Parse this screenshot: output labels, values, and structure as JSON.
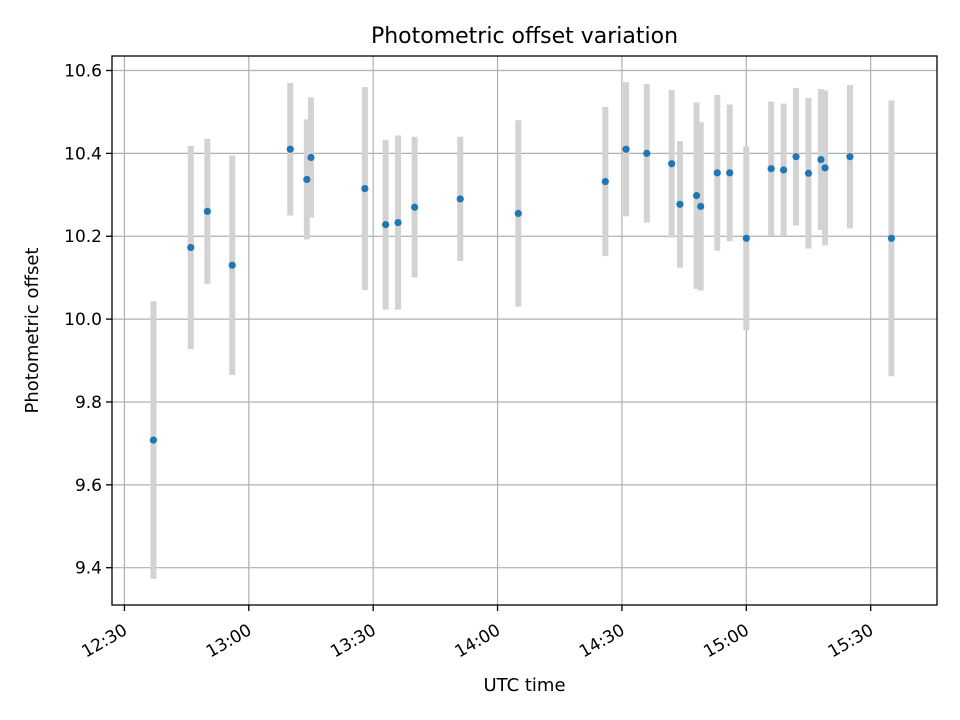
{
  "chart_data": {
    "type": "scatter",
    "title": "Photometric offset variation",
    "xlabel": "UTC time",
    "ylabel": "Photometric offset",
    "xlim": [
      "12:27",
      "15:46"
    ],
    "ylim": [
      9.31,
      10.635
    ],
    "x_ticks": [
      "12:30",
      "13:00",
      "13:30",
      "14:00",
      "14:30",
      "15:00",
      "15:30"
    ],
    "y_ticks": [
      9.4,
      9.6,
      9.8,
      10.0,
      10.2,
      10.4,
      10.6
    ],
    "grid": true,
    "marker_color": "#1f77b4",
    "errorbar_color": "#d3d3d3",
    "series": [
      {
        "points": [
          {
            "time": "12:37",
            "y": 9.708,
            "err": 0.335
          },
          {
            "time": "12:46",
            "y": 10.173,
            "err": 0.245
          },
          {
            "time": "12:50",
            "y": 10.26,
            "err": 0.175
          },
          {
            "time": "12:56",
            "y": 10.13,
            "err": 0.265
          },
          {
            "time": "13:10",
            "y": 10.41,
            "err": 0.16
          },
          {
            "time": "13:14",
            "y": 10.337,
            "err": 0.145
          },
          {
            "time": "13:15",
            "y": 10.39,
            "err": 0.145
          },
          {
            "time": "13:28",
            "y": 10.315,
            "err": 0.245
          },
          {
            "time": "13:33",
            "y": 10.228,
            "err": 0.205
          },
          {
            "time": "13:36",
            "y": 10.233,
            "err": 0.21
          },
          {
            "time": "13:40",
            "y": 10.27,
            "err": 0.17
          },
          {
            "time": "13:51",
            "y": 10.29,
            "err": 0.15
          },
          {
            "time": "14:05",
            "y": 10.255,
            "err": 0.225
          },
          {
            "time": "14:26",
            "y": 10.332,
            "err": 0.18
          },
          {
            "time": "14:31",
            "y": 10.41,
            "err": 0.162
          },
          {
            "time": "14:36",
            "y": 10.4,
            "err": 0.167
          },
          {
            "time": "14:42",
            "y": 10.375,
            "err": 0.178
          },
          {
            "time": "14:44",
            "y": 10.277,
            "err": 0.153
          },
          {
            "time": "14:48",
            "y": 10.298,
            "err": 0.225
          },
          {
            "time": "14:49",
            "y": 10.272,
            "err": 0.203
          },
          {
            "time": "14:53",
            "y": 10.353,
            "err": 0.188
          },
          {
            "time": "14:56",
            "y": 10.353,
            "err": 0.165
          },
          {
            "time": "15:00",
            "y": 10.195,
            "err": 0.222
          },
          {
            "time": "15:06",
            "y": 10.363,
            "err": 0.162
          },
          {
            "time": "15:09",
            "y": 10.36,
            "err": 0.16
          },
          {
            "time": "15:12",
            "y": 10.392,
            "err": 0.166
          },
          {
            "time": "15:15",
            "y": 10.352,
            "err": 0.182
          },
          {
            "time": "15:18",
            "y": 10.385,
            "err": 0.17
          },
          {
            "time": "15:19",
            "y": 10.365,
            "err": 0.187
          },
          {
            "time": "15:25",
            "y": 10.392,
            "err": 0.173
          },
          {
            "time": "15:35",
            "y": 10.195,
            "err": 0.333
          }
        ]
      }
    ]
  }
}
